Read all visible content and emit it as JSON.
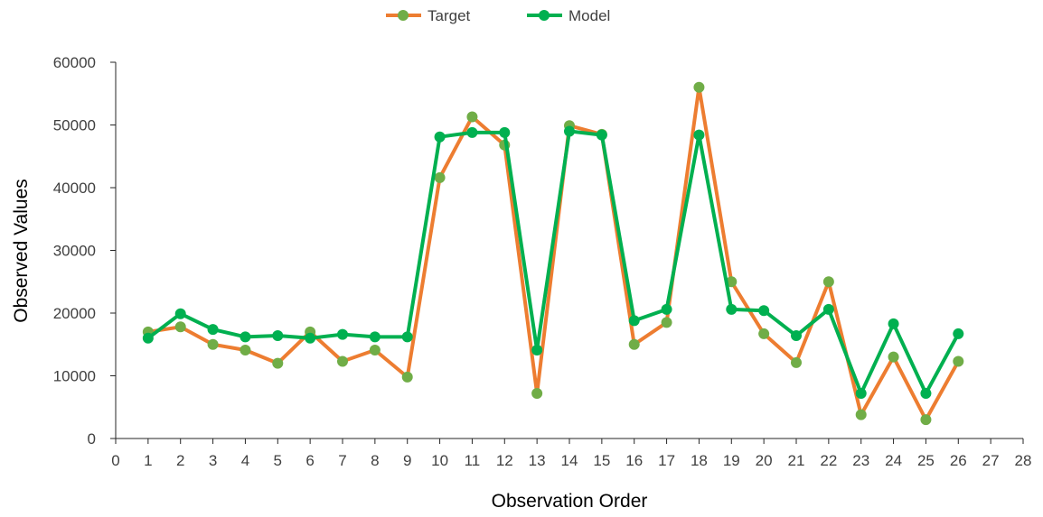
{
  "chart_data": {
    "type": "line",
    "xlabel": "Observation Order",
    "ylabel": "Observed Values",
    "xlim": [
      0,
      28
    ],
    "ylim": [
      0,
      60000
    ],
    "x_ticks": [
      "0",
      "1",
      "2",
      "3",
      "4",
      "5",
      "6",
      "7",
      "8",
      "9",
      "10",
      "11",
      "12",
      "13",
      "14",
      "15",
      "16",
      "17",
      "18",
      "19",
      "20",
      "21",
      "22",
      "23",
      "24",
      "25",
      "26",
      "27",
      "28"
    ],
    "y_ticks": [
      "0",
      "10000",
      "20000",
      "30000",
      "40000",
      "50000",
      "60000"
    ],
    "grid": false,
    "legend_position": "top",
    "x": [
      1,
      2,
      3,
      4,
      5,
      6,
      7,
      8,
      9,
      10,
      11,
      12,
      13,
      14,
      15,
      16,
      17,
      18,
      19,
      20,
      21,
      22,
      23,
      24,
      25,
      26
    ],
    "series": [
      {
        "name": "Target",
        "line_color": "#ED7D31",
        "marker_color": "#70AD47",
        "values": [
          17000,
          17800,
          15000,
          14100,
          12000,
          17000,
          12300,
          14100,
          9800,
          41600,
          51300,
          46800,
          7200,
          49900,
          48500,
          15000,
          18500,
          56000,
          25000,
          16700,
          12100,
          25000,
          3800,
          13000,
          3000,
          12300
        ]
      },
      {
        "name": "Model",
        "line_color": "#00B050",
        "marker_color": "#00B050",
        "values": [
          16000,
          19900,
          17400,
          16200,
          16400,
          16000,
          16600,
          16200,
          16200,
          48100,
          48800,
          48800,
          14100,
          49000,
          48400,
          18800,
          20600,
          48400,
          20600,
          20400,
          16400,
          20600,
          7200,
          18300,
          7200,
          16700
        ]
      }
    ]
  }
}
